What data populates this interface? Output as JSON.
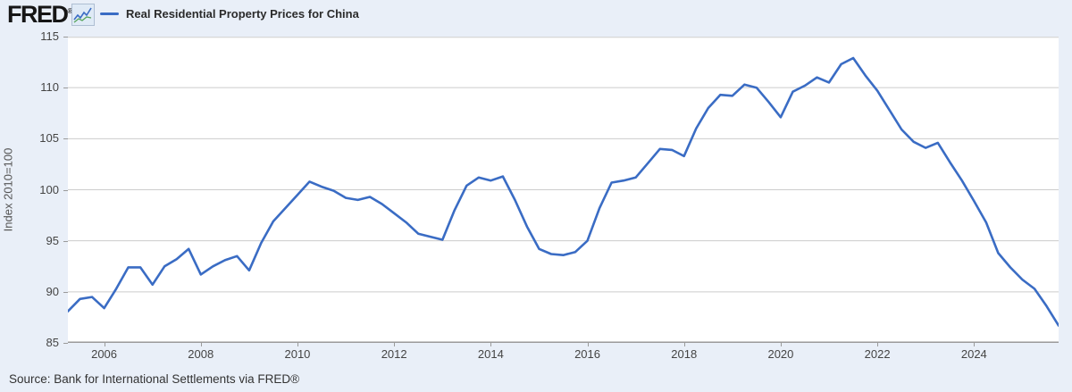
{
  "header": {
    "logo_text": "FRED",
    "registered_mark": "®",
    "legend_label": "Real Residential Property Prices for China"
  },
  "source_line": "Source: Bank for International Settlements via FRED®",
  "colors": {
    "line": "#3a6cc4",
    "background": "#e9eff8",
    "plot_background": "#ffffff",
    "gridline": "#cccccc",
    "axis_line": "#9a9a9a",
    "axis_text": "#444444"
  },
  "chart_data": {
    "type": "line",
    "title": "Real Residential Property Prices for China",
    "xlabel": "",
    "ylabel": "Index 2010=100",
    "ylim": [
      85,
      115
    ],
    "y_ticks": [
      85,
      90,
      95,
      100,
      105,
      110,
      115
    ],
    "grid": "horizontal",
    "legend_position": "top-left",
    "frequency": "quarterly",
    "x_start": "2005-Q2",
    "x_tick_labels": [
      "2006",
      "2008",
      "2010",
      "2012",
      "2014",
      "2016",
      "2018",
      "2020",
      "2022",
      "2024"
    ],
    "x_tick_indices": [
      3,
      11,
      19,
      27,
      35,
      43,
      51,
      59,
      67,
      75
    ],
    "values": [
      88.1,
      89.3,
      89.5,
      88.4,
      90.3,
      92.4,
      92.4,
      90.7,
      92.5,
      93.2,
      94.2,
      91.7,
      92.5,
      93.1,
      93.5,
      92.1,
      94.8,
      96.9,
      98.2,
      99.5,
      100.8,
      100.3,
      99.9,
      99.2,
      99.0,
      99.3,
      98.6,
      97.7,
      96.8,
      95.7,
      95.4,
      95.1,
      98.0,
      100.4,
      101.2,
      100.9,
      101.3,
      99.0,
      96.4,
      94.2,
      93.7,
      93.6,
      93.9,
      95.0,
      98.2,
      100.7,
      100.9,
      101.2,
      102.6,
      104.0,
      103.9,
      103.3,
      106.0,
      108.0,
      109.3,
      109.2,
      110.3,
      110.0,
      108.6,
      107.1,
      109.6,
      110.2,
      111.0,
      110.5,
      112.3,
      112.9,
      111.2,
      109.7,
      107.8,
      105.9,
      104.7,
      104.1,
      104.6,
      102.7,
      100.9,
      98.9,
      96.8,
      93.8,
      92.4,
      91.2,
      90.3,
      88.6,
      86.7
    ]
  }
}
